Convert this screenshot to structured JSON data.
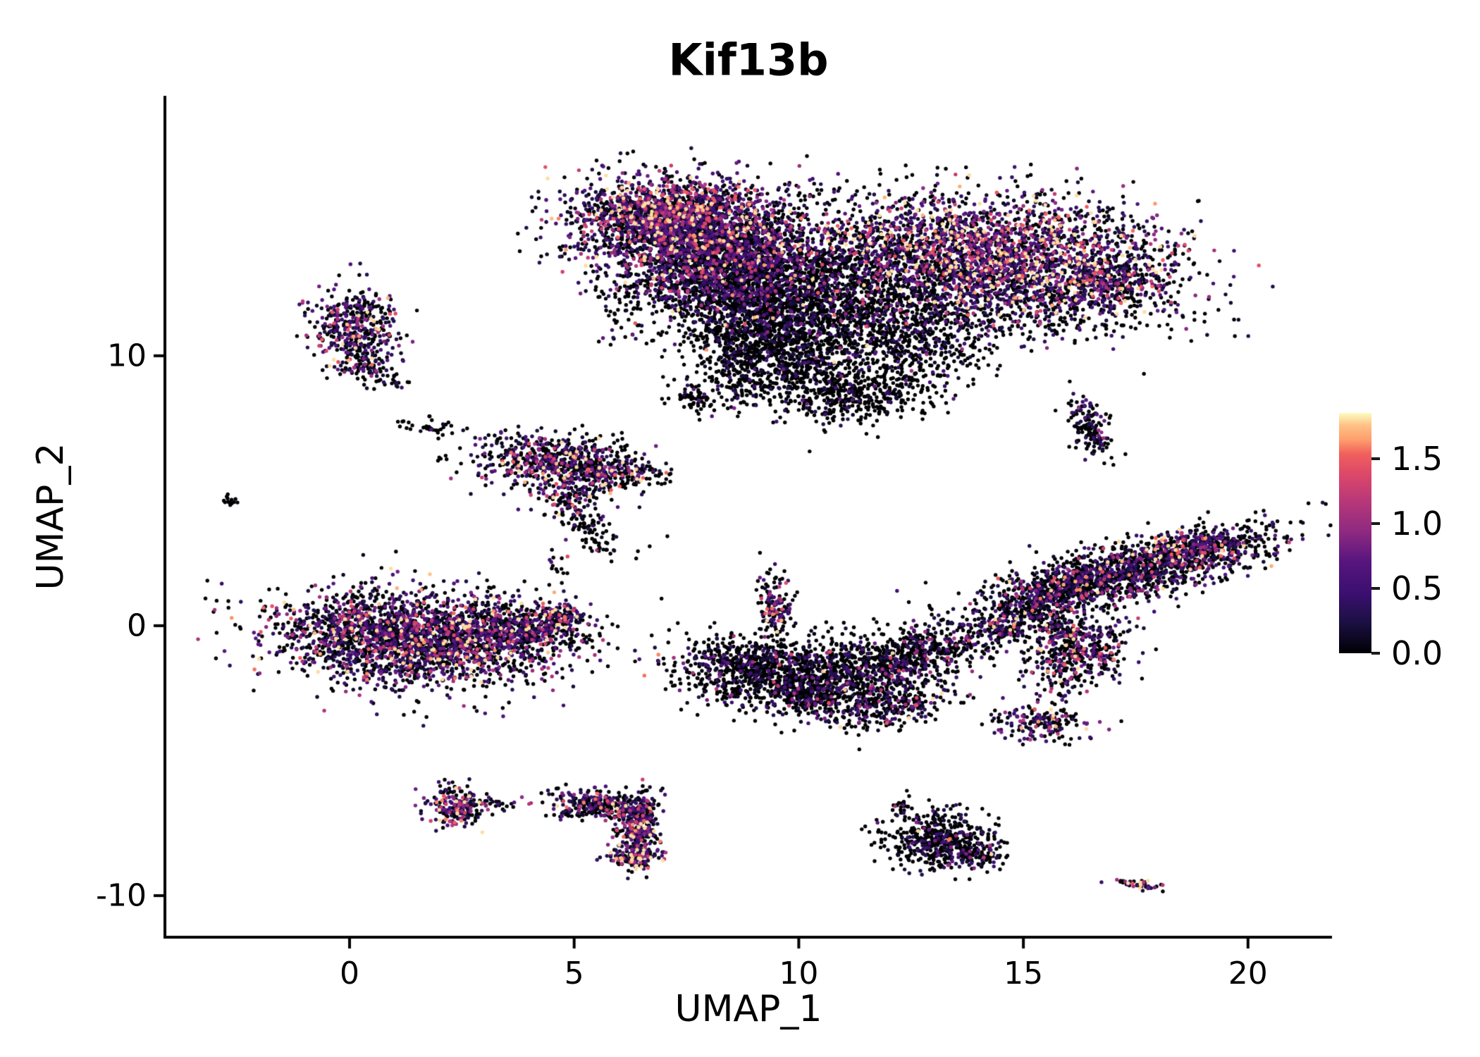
{
  "chart_data": {
    "type": "scatter",
    "title": "Kif13b",
    "xlabel": "UMAP_1",
    "ylabel": "UMAP_2",
    "grid": false,
    "background": "#ffffff",
    "point_color_encodes": "gene expression level",
    "x_range": [
      -4.11,
      21.87
    ],
    "y_range": [
      -11.54,
      19.63
    ],
    "x_ticks": [
      {
        "value": 0,
        "label": "0"
      },
      {
        "value": 5,
        "label": "5"
      },
      {
        "value": 10,
        "label": "10"
      },
      {
        "value": 15,
        "label": "15"
      },
      {
        "value": 20,
        "label": "20"
      }
    ],
    "y_ticks": [
      {
        "value": -10,
        "label": "-10"
      },
      {
        "value": 0,
        "label": "0"
      },
      {
        "value": 10,
        "label": "10"
      }
    ],
    "colorbar": {
      "position": "right",
      "colormap": "magma",
      "vmin": 0,
      "vmax": 1.85,
      "ticks": [
        {
          "value": 1.5,
          "label": "1.5"
        },
        {
          "value": 1.0,
          "label": "1.0"
        },
        {
          "value": 0.5,
          "label": "0.5"
        },
        {
          "value": 0.0,
          "label": "0.0"
        }
      ],
      "colormap_stops": [
        [
          0.0,
          "#000004"
        ],
        [
          0.13,
          "#1c1044"
        ],
        [
          0.25,
          "#3b0f70"
        ],
        [
          0.38,
          "#57157e"
        ],
        [
          0.5,
          "#8c2981"
        ],
        [
          0.63,
          "#b73779"
        ],
        [
          0.75,
          "#de4968"
        ],
        [
          0.83,
          "#f1605d"
        ],
        [
          0.89,
          "#fe9f6d"
        ],
        [
          0.95,
          "#fec287"
        ],
        [
          1.0,
          "#fcfdbf"
        ]
      ]
    },
    "cluster_fields": [
      "cx",
      "cy",
      "sx",
      "sy",
      "rot_deg",
      "n_points",
      "zero_fraction",
      "mean_expression"
    ],
    "clusters": [
      [
        7.6,
        14.6,
        1.25,
        1.0,
        -10,
        2300,
        0.38,
        0.55
      ],
      [
        6.9,
        15.4,
        0.9,
        0.45,
        0,
        500,
        0.3,
        0.75
      ],
      [
        8.6,
        12.9,
        1.1,
        1.0,
        0,
        1500,
        0.62,
        0.4
      ],
      [
        9.6,
        11.3,
        1.1,
        1.2,
        0,
        1500,
        0.82,
        0.25
      ],
      [
        11.4,
        12.9,
        1.1,
        1.4,
        0,
        700,
        0.7,
        0.35
      ],
      [
        14.2,
        14.0,
        1.9,
        1.0,
        -5,
        2200,
        0.35,
        0.75
      ],
      [
        14.9,
        12.2,
        1.9,
        0.75,
        -5,
        900,
        0.55,
        0.5
      ],
      [
        16.9,
        12.8,
        0.6,
        0.45,
        20,
        250,
        0.45,
        0.6
      ],
      [
        12.6,
        10.8,
        0.9,
        0.9,
        0,
        500,
        0.75,
        0.3
      ],
      [
        11.3,
        8.6,
        0.85,
        0.55,
        10,
        450,
        0.85,
        0.2
      ],
      [
        8.7,
        9.7,
        0.45,
        0.8,
        0,
        250,
        0.8,
        0.25
      ],
      [
        7.7,
        8.4,
        0.2,
        0.3,
        0,
        60,
        0.8,
        0.3
      ],
      [
        10.1,
        9.7,
        0.5,
        0.5,
        0,
        200,
        0.85,
        0.2
      ],
      [
        6.1,
        11.9,
        0.35,
        0.7,
        0,
        60,
        0.75,
        0.3
      ],
      [
        0.15,
        11.0,
        0.5,
        0.75,
        0,
        420,
        0.45,
        0.55
      ],
      [
        0.35,
        9.6,
        0.3,
        0.35,
        0,
        80,
        0.6,
        0.4
      ],
      [
        1.0,
        9.0,
        0.12,
        0.1,
        0,
        12,
        0.7,
        0.3
      ],
      [
        -2.62,
        4.6,
        0.07,
        0.18,
        15,
        14,
        0.85,
        0.2
      ],
      [
        1.7,
        7.3,
        0.35,
        0.18,
        -20,
        28,
        0.8,
        0.3
      ],
      [
        4.6,
        6.1,
        0.95,
        0.5,
        -8,
        650,
        0.5,
        0.6
      ],
      [
        5.9,
        5.6,
        0.45,
        0.3,
        0,
        150,
        0.55,
        0.5
      ],
      [
        4.9,
        4.8,
        0.35,
        0.45,
        0,
        130,
        0.6,
        0.5
      ],
      [
        5.3,
        3.7,
        0.3,
        0.4,
        0,
        60,
        0.7,
        0.4
      ],
      [
        5.6,
        2.9,
        0.15,
        0.2,
        0,
        15,
        0.6,
        0.5
      ],
      [
        1.4,
        -0.5,
        1.5,
        0.85,
        -8,
        2400,
        0.48,
        0.6
      ],
      [
        3.6,
        -0.1,
        0.9,
        0.45,
        -15,
        500,
        0.55,
        0.5
      ],
      [
        4.7,
        0.4,
        0.3,
        0.25,
        0,
        120,
        0.5,
        0.6
      ],
      [
        9.45,
        0.8,
        0.18,
        0.55,
        5,
        130,
        0.5,
        0.6
      ],
      [
        8.85,
        -1.6,
        0.8,
        0.65,
        0,
        650,
        0.78,
        0.3
      ],
      [
        10.8,
        -1.8,
        1.1,
        0.7,
        10,
        850,
        0.78,
        0.3
      ],
      [
        12.8,
        -1.0,
        1.1,
        0.5,
        25,
        550,
        0.7,
        0.35
      ],
      [
        11.9,
        -3.0,
        0.8,
        0.4,
        15,
        280,
        0.65,
        0.45
      ],
      [
        10.2,
        -2.6,
        0.4,
        0.3,
        0,
        150,
        0.7,
        0.35
      ],
      [
        17.3,
        2.0,
        1.7,
        0.5,
        20,
        1500,
        0.6,
        0.45
      ],
      [
        19.0,
        3.0,
        0.5,
        0.3,
        20,
        200,
        0.45,
        0.6
      ],
      [
        15.3,
        0.7,
        0.6,
        0.35,
        20,
        250,
        0.65,
        0.4
      ],
      [
        16.2,
        -0.9,
        0.55,
        0.8,
        -10,
        550,
        0.55,
        0.55
      ],
      [
        14.5,
        -0.1,
        0.3,
        0.25,
        0,
        80,
        0.6,
        0.5
      ],
      [
        16.5,
        7.3,
        0.22,
        0.55,
        10,
        160,
        0.7,
        0.35
      ],
      [
        15.4,
        -3.6,
        0.55,
        0.33,
        -10,
        170,
        0.55,
        0.5
      ],
      [
        2.35,
        -6.7,
        0.33,
        0.42,
        0,
        210,
        0.35,
        0.8
      ],
      [
        3.3,
        -6.6,
        0.25,
        0.12,
        0,
        25,
        0.7,
        0.4
      ],
      [
        5.6,
        -6.6,
        0.55,
        0.25,
        -12,
        260,
        0.5,
        0.55
      ],
      [
        6.45,
        -7.5,
        0.22,
        0.6,
        -5,
        300,
        0.5,
        0.55
      ],
      [
        6.35,
        -8.55,
        0.3,
        0.25,
        0,
        140,
        0.35,
        0.8
      ],
      [
        4.9,
        -6.9,
        0.2,
        0.15,
        0,
        30,
        0.6,
        0.4
      ],
      [
        13.1,
        -8.0,
        0.6,
        0.55,
        -15,
        520,
        0.75,
        0.3
      ],
      [
        14.0,
        -8.5,
        0.3,
        0.2,
        -20,
        80,
        0.65,
        0.4
      ],
      [
        12.3,
        -6.7,
        0.15,
        0.25,
        0,
        20,
        0.7,
        0.3
      ],
      [
        17.6,
        -9.6,
        0.28,
        0.1,
        -12,
        45,
        0.35,
        0.7
      ],
      [
        6.8,
        5.7,
        0.3,
        0.3,
        0,
        20,
        0.8,
        0.3
      ],
      [
        6.3,
        2.6,
        0.4,
        0.4,
        0,
        10,
        0.7,
        0.4
      ],
      [
        2.1,
        7.5,
        0.15,
        0.1,
        0,
        6,
        0.8,
        0.2
      ],
      [
        4.6,
        1.9,
        0.25,
        0.5,
        0,
        18,
        0.7,
        0.3
      ]
    ]
  }
}
